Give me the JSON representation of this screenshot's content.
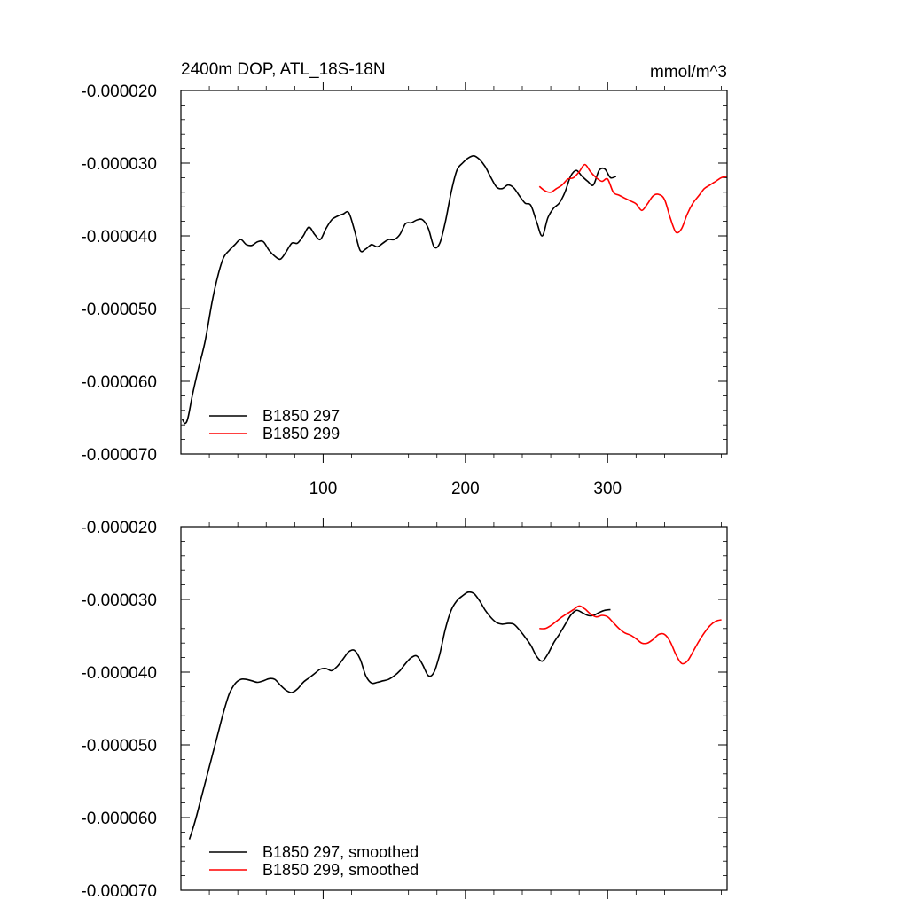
{
  "chart_data": [
    {
      "type": "line",
      "title": "2400m DOP, ATL_18S-18N",
      "units": "mmol/m^3",
      "xlabel": "",
      "ylabel": "",
      "xlim": [
        0,
        384
      ],
      "ylim": [
        -7e-05,
        -2e-05
      ],
      "xticks": [
        100,
        200,
        300
      ],
      "xtick_labels": [
        "100",
        "200",
        "300"
      ],
      "yticks": [
        -2e-05,
        -3e-05,
        -4e-05,
        -5e-05,
        -6e-05,
        -7e-05
      ],
      "ytick_labels": [
        "-0.000020",
        "-0.000030",
        "-0.000040",
        "-0.000050",
        "-0.000060",
        "-0.000070"
      ],
      "legend_position": "bottom-left",
      "series": [
        {
          "name": "B1850 297",
          "color": "#000000",
          "x": [
            1,
            3,
            5,
            8,
            12,
            17,
            22,
            26,
            30,
            34,
            38,
            42,
            46,
            50,
            54,
            58,
            62,
            66,
            70,
            74,
            78,
            82,
            86,
            90,
            94,
            98,
            102,
            106,
            110,
            114,
            118,
            122,
            126,
            130,
            134,
            138,
            142,
            146,
            150,
            154,
            158,
            162,
            166,
            170,
            174,
            178,
            182,
            186,
            190,
            194,
            198,
            202,
            206,
            210,
            214,
            218,
            222,
            226,
            230,
            234,
            238,
            242,
            246,
            250,
            254,
            258,
            262,
            266,
            270,
            274,
            278,
            282,
            286,
            290,
            294,
            298,
            302,
            306
          ],
          "y": [
            -6.52e-05,
            -6.58e-05,
            -6.5e-05,
            -6.2e-05,
            -5.85e-05,
            -5.45e-05,
            -4.9e-05,
            -4.55e-05,
            -4.3e-05,
            -4.2e-05,
            -4.12e-05,
            -4.05e-05,
            -4.12e-05,
            -4.13e-05,
            -4.08e-05,
            -4.08e-05,
            -4.2e-05,
            -4.28e-05,
            -4.32e-05,
            -4.22e-05,
            -4.1e-05,
            -4.1e-05,
            -4e-05,
            -3.88e-05,
            -3.98e-05,
            -4.05e-05,
            -3.9e-05,
            -3.78e-05,
            -3.73e-05,
            -3.7e-05,
            -3.68e-05,
            -3.92e-05,
            -4.2e-05,
            -4.18e-05,
            -4.12e-05,
            -4.15e-05,
            -4.1e-05,
            -4.05e-05,
            -4.05e-05,
            -3.98e-05,
            -3.83e-05,
            -3.82e-05,
            -3.78e-05,
            -3.78e-05,
            -3.9e-05,
            -4.15e-05,
            -4.1e-05,
            -3.8e-05,
            -3.4e-05,
            -3.1e-05,
            -3e-05,
            -2.93e-05,
            -2.9e-05,
            -2.95e-05,
            -3.05e-05,
            -3.2e-05,
            -3.33e-05,
            -3.35e-05,
            -3.3e-05,
            -3.34e-05,
            -3.45e-05,
            -3.55e-05,
            -3.58e-05,
            -3.8e-05,
            -4e-05,
            -3.75e-05,
            -3.62e-05,
            -3.55e-05,
            -3.4e-05,
            -3.18e-05,
            -3.1e-05,
            -3.18e-05,
            -3.25e-05,
            -3.3e-05,
            -3.1e-05,
            -3.08e-05,
            -3.2e-05,
            -3.18e-05
          ]
        },
        {
          "name": "B1850 299",
          "color": "#ff0000",
          "x": [
            252,
            256,
            260,
            264,
            268,
            272,
            276,
            280,
            284,
            288,
            292,
            296,
            300,
            304,
            308,
            312,
            316,
            320,
            324,
            328,
            332,
            336,
            340,
            344,
            348,
            352,
            356,
            360,
            364,
            368,
            372,
            376,
            380,
            384
          ],
          "y": [
            -3.32e-05,
            -3.38e-05,
            -3.4e-05,
            -3.35e-05,
            -3.3e-05,
            -3.22e-05,
            -3.2e-05,
            -3.12e-05,
            -3.02e-05,
            -3.12e-05,
            -3.2e-05,
            -3.25e-05,
            -3.22e-05,
            -3.4e-05,
            -3.44e-05,
            -3.48e-05,
            -3.52e-05,
            -3.56e-05,
            -3.65e-05,
            -3.56e-05,
            -3.45e-05,
            -3.43e-05,
            -3.5e-05,
            -3.75e-05,
            -3.95e-05,
            -3.9e-05,
            -3.7e-05,
            -3.55e-05,
            -3.45e-05,
            -3.35e-05,
            -3.3e-05,
            -3.25e-05,
            -3.2e-05,
            -3.18e-05
          ]
        }
      ]
    },
    {
      "type": "line",
      "title": "",
      "xlabel": "",
      "ylabel": "",
      "xlim": [
        0,
        384
      ],
      "ylim": [
        -7e-05,
        -2e-05
      ],
      "xticks": [
        100,
        200,
        300
      ],
      "xtick_labels": [],
      "yticks": [
        -2e-05,
        -3e-05,
        -4e-05,
        -5e-05,
        -6e-05,
        -7e-05
      ],
      "ytick_labels": [
        "-0.000020",
        "-0.000030",
        "-0.000040",
        "-0.000050",
        "-0.000060",
        "-0.000070"
      ],
      "legend_position": "bottom-left",
      "series": [
        {
          "name": "B1850 297, smoothed",
          "color": "#000000",
          "x": [
            6,
            10,
            14,
            18,
            22,
            26,
            30,
            34,
            38,
            42,
            46,
            50,
            54,
            58,
            62,
            66,
            70,
            74,
            78,
            82,
            86,
            90,
            94,
            98,
            102,
            106,
            110,
            114,
            118,
            122,
            126,
            130,
            134,
            138,
            142,
            146,
            150,
            154,
            158,
            162,
            166,
            170,
            174,
            178,
            182,
            186,
            190,
            194,
            198,
            202,
            206,
            210,
            214,
            218,
            222,
            226,
            230,
            234,
            238,
            242,
            246,
            250,
            254,
            258,
            262,
            266,
            270,
            274,
            278,
            282,
            286,
            290,
            294,
            298,
            302
          ],
          "y": [
            -6.3e-05,
            -6.05e-05,
            -5.75e-05,
            -5.45e-05,
            -5.15e-05,
            -4.85e-05,
            -4.55e-05,
            -4.3e-05,
            -4.16e-05,
            -4.1e-05,
            -4.1e-05,
            -4.12e-05,
            -4.14e-05,
            -4.12e-05,
            -4.09e-05,
            -4.1e-05,
            -4.18e-05,
            -4.25e-05,
            -4.28e-05,
            -4.23e-05,
            -4.14e-05,
            -4.08e-05,
            -4.02e-05,
            -3.96e-05,
            -3.95e-05,
            -3.98e-05,
            -3.92e-05,
            -3.82e-05,
            -3.72e-05,
            -3.7e-05,
            -3.82e-05,
            -4.05e-05,
            -4.15e-05,
            -4.14e-05,
            -4.12e-05,
            -4.1e-05,
            -4.05e-05,
            -3.98e-05,
            -3.88e-05,
            -3.8e-05,
            -3.78e-05,
            -3.9e-05,
            -4.05e-05,
            -4e-05,
            -3.75e-05,
            -3.4e-05,
            -3.15e-05,
            -3.02e-05,
            -2.95e-05,
            -2.9e-05,
            -2.92e-05,
            -3.02e-05,
            -3.15e-05,
            -3.25e-05,
            -3.32e-05,
            -3.34e-05,
            -3.33e-05,
            -3.34e-05,
            -3.42e-05,
            -3.52e-05,
            -3.63e-05,
            -3.78e-05,
            -3.85e-05,
            -3.75e-05,
            -3.6e-05,
            -3.48e-05,
            -3.35e-05,
            -3.22e-05,
            -3.15e-05,
            -3.18e-05,
            -3.22e-05,
            -3.22e-05,
            -3.18e-05,
            -3.15e-05,
            -3.14e-05
          ]
        },
        {
          "name": "B1850 299, smoothed",
          "color": "#ff0000",
          "x": [
            252,
            256,
            260,
            264,
            268,
            272,
            276,
            280,
            284,
            288,
            292,
            296,
            300,
            304,
            308,
            312,
            316,
            320,
            324,
            328,
            332,
            336,
            340,
            344,
            348,
            352,
            356,
            360,
            364,
            368,
            372,
            376,
            380
          ],
          "y": [
            -3.4e-05,
            -3.4e-05,
            -3.36e-05,
            -3.3e-05,
            -3.24e-05,
            -3.19e-05,
            -3.14e-05,
            -3.09e-05,
            -3.13e-05,
            -3.2e-05,
            -3.24e-05,
            -3.22e-05,
            -3.24e-05,
            -3.32e-05,
            -3.4e-05,
            -3.46e-05,
            -3.49e-05,
            -3.54e-05,
            -3.6e-05,
            -3.6e-05,
            -3.55e-05,
            -3.48e-05,
            -3.48e-05,
            -3.58e-05,
            -3.76e-05,
            -3.88e-05,
            -3.85e-05,
            -3.72e-05,
            -3.58e-05,
            -3.46e-05,
            -3.36e-05,
            -3.3e-05,
            -3.28e-05
          ]
        }
      ]
    }
  ]
}
